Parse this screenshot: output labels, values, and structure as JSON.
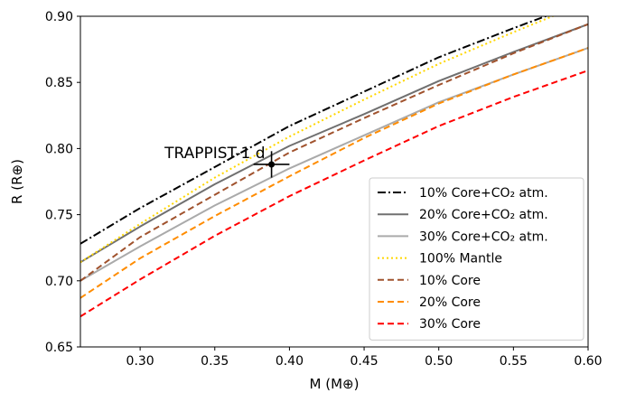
{
  "chart_data": {
    "type": "line",
    "xlabel": "M (M⊕)",
    "ylabel": "R (R⊕)",
    "xlim": [
      0.26,
      0.6
    ],
    "ylim": [
      0.65,
      0.9
    ],
    "xticks": [
      0.3,
      0.35,
      0.4,
      0.45,
      0.5,
      0.55,
      0.6
    ],
    "xtick_labels": [
      "0.30",
      "0.35",
      "0.40",
      "0.45",
      "0.50",
      "0.55",
      "0.60"
    ],
    "yticks": [
      0.65,
      0.7,
      0.75,
      0.8,
      0.85,
      0.9
    ],
    "ytick_labels": [
      "0.65",
      "0.70",
      "0.75",
      "0.80",
      "0.85",
      "0.90"
    ],
    "legend_position": "lower-right",
    "series": [
      {
        "name": "10% Core+CO₂ atm.",
        "color": "#000000",
        "dash": "dashdot",
        "x": [
          0.26,
          0.3,
          0.35,
          0.4,
          0.45,
          0.5,
          0.55,
          0.6
        ],
        "y": [
          0.728,
          0.755,
          0.786,
          0.817,
          0.843,
          0.869,
          0.891,
          0.912
        ]
      },
      {
        "name": "20% Core+CO₂ atm.",
        "color": "#707070",
        "dash": "solid",
        "x": [
          0.26,
          0.3,
          0.35,
          0.4,
          0.45,
          0.5,
          0.55,
          0.6
        ],
        "y": [
          0.714,
          0.741,
          0.773,
          0.802,
          0.826,
          0.851,
          0.873,
          0.894
        ]
      },
      {
        "name": "30% Core+CO₂ atm.",
        "color": "#aaaaaa",
        "dash": "solid",
        "x": [
          0.26,
          0.3,
          0.35,
          0.4,
          0.45,
          0.5,
          0.55,
          0.6
        ],
        "y": [
          0.7,
          0.726,
          0.757,
          0.785,
          0.81,
          0.835,
          0.856,
          0.876
        ]
      },
      {
        "name": "100% Mantle",
        "color": "#ffd700",
        "dash": "dotted",
        "x": [
          0.26,
          0.3,
          0.35,
          0.4,
          0.45,
          0.5,
          0.55,
          0.6
        ],
        "y": [
          0.714,
          0.743,
          0.778,
          0.809,
          0.837,
          0.864,
          0.888,
          0.911
        ]
      },
      {
        "name": "10% Core",
        "color": "#a0522d",
        "dash": "dashed",
        "x": [
          0.26,
          0.3,
          0.35,
          0.4,
          0.45,
          0.5,
          0.55,
          0.6
        ],
        "y": [
          0.7,
          0.733,
          0.765,
          0.797,
          0.823,
          0.848,
          0.872,
          0.894
        ]
      },
      {
        "name": "20% Core",
        "color": "#ff8c00",
        "dash": "dashed",
        "x": [
          0.26,
          0.3,
          0.35,
          0.4,
          0.45,
          0.5,
          0.55,
          0.6
        ],
        "y": [
          0.687,
          0.717,
          0.749,
          0.779,
          0.808,
          0.834,
          0.856,
          0.876
        ]
      },
      {
        "name": "30% Core",
        "color": "#ff0000",
        "dash": "dashed",
        "x": [
          0.26,
          0.3,
          0.35,
          0.4,
          0.45,
          0.5,
          0.55,
          0.6
        ],
        "y": [
          0.673,
          0.701,
          0.734,
          0.764,
          0.791,
          0.817,
          0.839,
          0.859
        ]
      }
    ],
    "points": [
      {
        "label": "TRAPPIST-1 d",
        "x": 0.388,
        "y": 0.788,
        "xerr": 0.012,
        "yerr": 0.01,
        "color": "#000000"
      }
    ]
  }
}
